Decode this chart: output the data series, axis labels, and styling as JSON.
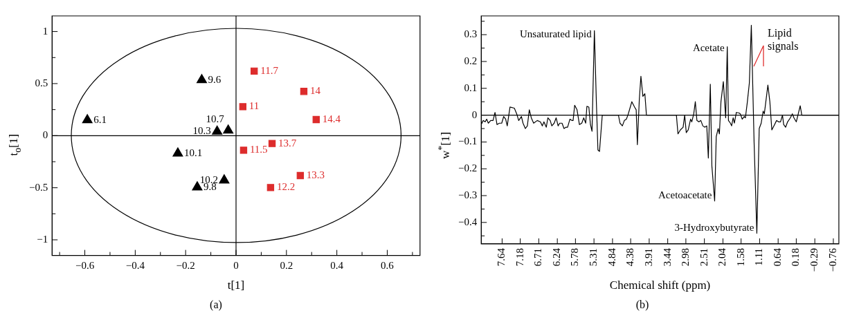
{
  "chart_data": [
    {
      "type": "scatter",
      "xlabel": "t[1]",
      "ylabel": "t$_{o}$[1]",
      "xlim": [
        -0.73,
        0.73
      ],
      "xticks": [
        {
          "value": -0.7,
          "label": null
        },
        -0.6,
        {
          "value": -0.5,
          "label": null
        },
        -0.4,
        {
          "value": -0.3,
          "label": null
        },
        -0.2,
        {
          "value": -0.1,
          "label": null
        },
        0,
        {
          "value": 0.1,
          "label": null
        },
        0.2,
        {
          "value": 0.3,
          "label": null
        },
        0.4,
        {
          "value": 0.5,
          "label": null
        },
        0.6,
        {
          "value": 0.7,
          "label": null
        }
      ],
      "ylim": [
        -1.15,
        1.15
      ],
      "yticks": [
        -1,
        {
          "value": -0.75,
          "label": null
        },
        -0.5,
        {
          "value": -0.25,
          "label": null
        },
        0,
        {
          "value": 0.25,
          "label": null
        },
        0.5,
        {
          "value": 0.75,
          "label": null
        },
        1
      ],
      "grid": false,
      "legend": false,
      "ref_lines": [
        {
          "axis": "x",
          "value": 0
        },
        {
          "axis": "y",
          "value": 0
        }
      ],
      "series": [
        {
          "color": "#000000",
          "marker": "triangle",
          "x": [
            -0.59,
            -0.136,
            -0.231,
            -0.154,
            -0.047,
            -0.075,
            -0.031
          ],
          "values": [
            0.15,
            0.535,
            -0.17,
            -0.495,
            -0.428,
            0.04,
            0.05
          ]
        },
        {
          "color": "#dd2c2c",
          "marker": "square",
          "x": [
            0.072,
            0.269,
            0.027,
            0.318,
            0.143,
            0.03,
            0.255,
            0.137
          ],
          "values": [
            0.62,
            0.425,
            0.278,
            0.155,
            -0.075,
            -0.14,
            -0.383,
            -0.498
          ]
        }
      ],
      "annotations": [
        {
          "text": "6.1",
          "x": -0.59,
          "y": 0.15
        },
        {
          "text": "9.6",
          "x": -0.136,
          "y": 0.535
        },
        {
          "text": "10.1",
          "x": -0.231,
          "y": -0.17
        },
        {
          "text": "9.8",
          "x": -0.154,
          "y": -0.495
        },
        {
          "text": "10.2",
          "x": -0.047,
          "y": -0.428
        },
        {
          "text": "10.3",
          "x": -0.075,
          "y": 0.04
        },
        {
          "text": "10.7",
          "x": -0.031,
          "y": 0.05
        },
        {
          "text": "11.7",
          "x": 0.072,
          "y": 0.62
        },
        {
          "text": "14",
          "x": 0.269,
          "y": 0.425
        },
        {
          "text": "11",
          "x": 0.027,
          "y": 0.278
        },
        {
          "text": "14.4",
          "x": 0.318,
          "y": 0.155
        },
        {
          "text": "13.7",
          "x": 0.143,
          "y": -0.075
        },
        {
          "text": "11.5",
          "x": 0.03,
          "y": -0.14
        },
        {
          "text": "13.3",
          "x": 0.255,
          "y": -0.383
        },
        {
          "text": "12.2",
          "x": 0.137,
          "y": -0.498
        },
        "(a)"
      ]
    },
    {
      "type": "line",
      "xlabel": "Chemical shift (ppm)",
      "ylabel": "w$^{*}$[1]",
      "xlim": [
        8.17,
        -0.9
      ],
      "xticks": [
        7.64,
        7.18,
        6.71,
        6.24,
        5.78,
        5.31,
        4.84,
        4.38,
        3.91,
        3.44,
        2.98,
        2.51,
        2.04,
        1.58,
        1.11,
        0.64,
        0.18,
        -0.29,
        -0.76
      ],
      "ylim": [
        -0.48,
        0.37
      ],
      "yticks": [
        {
          "value": -0.45,
          "label": null
        },
        -0.4,
        {
          "value": -0.35,
          "label": null
        },
        -0.3,
        {
          "value": -0.25,
          "label": null
        },
        -0.2,
        {
          "value": -0.15,
          "label": null
        },
        -0.1,
        {
          "value": -0.05,
          "label": null
        },
        0,
        {
          "value": 0.05,
          "label": null
        },
        0.1,
        {
          "value": 0.15,
          "label": null
        },
        0.2,
        {
          "value": 0.25,
          "label": null
        },
        0.3,
        {
          "value": 0.35,
          "label": null
        }
      ],
      "grid": false,
      "legend": false,
      "ref_lines": [
        {
          "axis": "y",
          "value": 0
        }
      ],
      "series": [
        {
          "color": "#000000",
          "marker": "none",
          "x": [
            8.17,
            8.12,
            8.07,
            8.03,
            7.99,
            7.93,
            7.87,
            7.82,
            7.77,
            7.71,
            7.65,
            7.6,
            7.55,
            7.51,
            7.44,
            7.33,
            7.27,
            7.22,
            7.15,
            7.11,
            7.05,
            7.0,
            6.95,
            6.9,
            6.84,
            6.75,
            6.67,
            6.62,
            6.58,
            6.52,
            6.48,
            6.42,
            6.38,
            6.32,
            6.27,
            6.22,
            6.18,
            6.12,
            6.07,
            6.02,
            5.98,
            5.92,
            5.87,
            5.84,
            5.8,
            5.74,
            5.68,
            5.62,
            5.57,
            5.52,
            5.49,
            5.44,
            5.4,
            5.36,
            5.3,
            5.25,
            5.21,
            5.17,
            5.1,
            4.69,
            4.65,
            4.59,
            4.54,
            4.49,
            4.45,
            4.39,
            4.35,
            4.28,
            4.24,
            4.21,
            4.16,
            4.12,
            4.07,
            4.02,
            3.98,
            3.22,
            3.18,
            3.12,
            3.05,
            3.01,
            2.97,
            2.92,
            2.86,
            2.83,
            2.78,
            2.74,
            2.7,
            2.65,
            2.6,
            2.55,
            2.5,
            2.45,
            2.41,
            2.36,
            2.32,
            2.25,
            2.21,
            2.16,
            2.13,
            2.09,
            2.03,
            1.97,
            1.93,
            1.9,
            1.85,
            1.82,
            1.78,
            1.75,
            1.7,
            1.63,
            1.6,
            1.55,
            1.5,
            1.47,
            1.42,
            1.37,
            1.32,
            1.25,
            1.18,
            1.12,
            1.07,
            1.02,
            0.99,
            0.9,
            0.85,
            0.8,
            0.73,
            0.68,
            0.63,
            0.58,
            0.53,
            0.5,
            0.45,
            0.4,
            0.33,
            0.28,
            0.24,
            0.18,
            0.08,
            0.04,
            -0.9
          ],
          "values": [
            -0.035,
            -0.02,
            -0.025,
            -0.015,
            -0.03,
            -0.02,
            -0.02,
            0.01,
            -0.035,
            -0.03,
            -0.03,
            -0.005,
            -0.015,
            -0.04,
            0.03,
            0.026,
            0.005,
            -0.02,
            -0.005,
            -0.03,
            -0.05,
            -0.04,
            0.02,
            -0.01,
            -0.03,
            -0.02,
            -0.025,
            -0.04,
            -0.025,
            -0.045,
            -0.01,
            -0.02,
            -0.04,
            -0.03,
            -0.01,
            -0.04,
            -0.03,
            -0.03,
            -0.05,
            -0.045,
            -0.045,
            -0.015,
            -0.02,
            -0.02,
            0.037,
            0.02,
            -0.035,
            -0.03,
            -0.01,
            -0.03,
            0.033,
            0.03,
            -0.035,
            -0.06,
            0.315,
            0.05,
            -0.13,
            -0.135,
            0,
            0,
            -0.03,
            -0.04,
            -0.02,
            -0.015,
            0,
            0.03,
            0.05,
            0.03,
            0.02,
            -0.11,
            0.06,
            0.145,
            0.07,
            0.08,
            0,
            0,
            -0.07,
            -0.055,
            -0.045,
            0,
            -0.065,
            -0.055,
            -0.015,
            -0.025,
            0.005,
            0.05,
            -0.02,
            -0.025,
            -0.02,
            -0.04,
            -0.045,
            -0.04,
            -0.16,
            0.115,
            -0.19,
            -0.32,
            -0.08,
            -0.05,
            -0.07,
            0.05,
            0.125,
            -0.01,
            0.255,
            -0.02,
            -0.03,
            -0.04,
            -0.01,
            -0.03,
            0.01,
            0.008,
            0.005,
            -0.015,
            -0.005,
            -0.01,
            0.05,
            0.12,
            0.335,
            -0.1,
            -0.44,
            -0.05,
            -0.03,
            0.015,
            0.005,
            0.112,
            0.05,
            -0.055,
            -0.035,
            -0.02,
            -0.025,
            -0.025,
            0,
            -0.035,
            -0.045,
            -0.025,
            -0.01,
            0.005,
            -0.01,
            -0.025,
            0.035,
            0,
            0
          ]
        }
      ],
      "annotations": [
        {
          "text": "Unsaturated lipid",
          "x": 5.3,
          "y": 0.3
        },
        {
          "text": "Acetate",
          "x": 1.93,
          "y": 0.25
        },
        {
          "text": "Acetoacetate",
          "x": 2.25,
          "y": -0.3
        },
        {
          "text": "3-Hydroxybutyrate",
          "x": 1.18,
          "y": -0.42
        },
        "Lipid signals",
        "(b)"
      ]
    }
  ]
}
